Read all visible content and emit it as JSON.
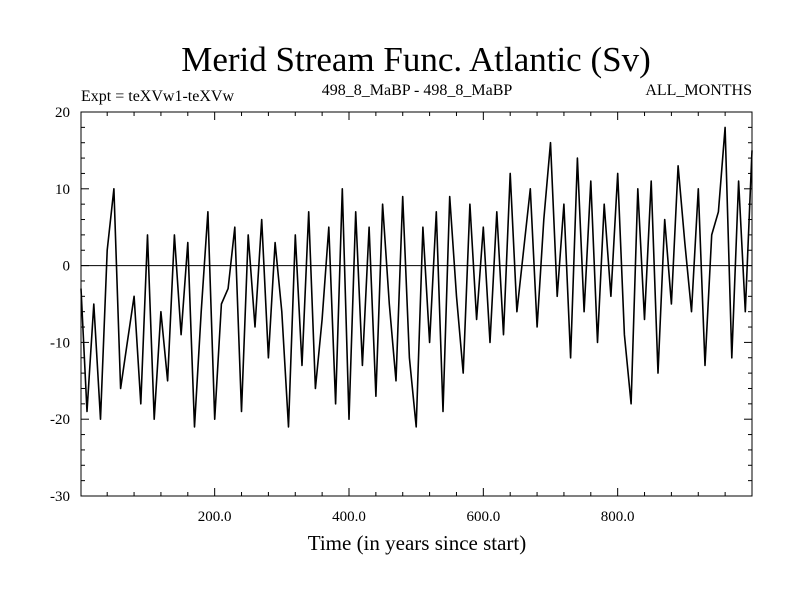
{
  "chart_data": {
    "type": "line",
    "title": "Merid Stream Func. Atlantic (Sv)",
    "subtitle_left": "Expt = teXVw1-teXVw",
    "subtitle_center": "498_8_MaBP - 498_8_MaBP",
    "subtitle_right": "ALL_MONTHS",
    "xlabel": "Time (in years since start)",
    "ylabel": "",
    "xlim": [
      1,
      1000
    ],
    "ylim": [
      -30,
      20
    ],
    "x_ticks": [
      200,
      400,
      600,
      800
    ],
    "x_tick_labels": [
      "200.0",
      "400.0",
      "600.0",
      "800.0"
    ],
    "y_ticks": [
      -30,
      -20,
      -10,
      0,
      10,
      20
    ],
    "y_tick_labels": [
      "-30",
      "-20",
      "-10",
      "0",
      "10",
      "20"
    ],
    "zero_line": true,
    "grid": false,
    "series": [
      {
        "x": [
          1,
          10,
          20,
          30,
          40,
          50,
          60,
          70,
          80,
          90,
          100,
          110,
          120,
          130,
          140,
          150,
          160,
          170,
          180,
          190,
          200,
          210,
          220,
          230,
          240,
          250,
          260,
          270,
          280,
          290,
          300,
          310,
          320,
          330,
          340,
          350,
          360,
          370,
          380,
          390,
          400,
          410,
          420,
          430,
          440,
          450,
          460,
          470,
          480,
          490,
          500,
          510,
          520,
          530,
          540,
          550,
          560,
          570,
          580,
          590,
          600,
          610,
          620,
          630,
          640,
          650,
          660,
          670,
          680,
          690,
          700,
          710,
          720,
          730,
          740,
          750,
          760,
          770,
          780,
          790,
          800,
          810,
          820,
          830,
          840,
          850,
          860,
          870,
          880,
          890,
          900,
          910,
          920,
          930,
          940,
          950,
          960,
          970,
          980,
          990,
          1000
        ],
        "values": [
          -3,
          -19,
          -5,
          -20,
          2,
          10,
          -16,
          -10,
          -4,
          -18,
          4,
          -20,
          -6,
          -15,
          4,
          -9,
          3,
          -21,
          -6,
          7,
          -20,
          -5,
          -3,
          5,
          -19,
          4,
          -8,
          6,
          -12,
          3,
          -6,
          -21,
          4,
          -13,
          7,
          -16,
          -7,
          5,
          -18,
          10,
          -20,
          7,
          -13,
          5,
          -17,
          8,
          -5,
          -15,
          9,
          -12,
          -21,
          5,
          -10,
          7,
          -19,
          9,
          -4,
          -14,
          8,
          -7,
          5,
          -10,
          7,
          -9,
          12,
          -6,
          2,
          10,
          -8,
          6,
          16,
          -4,
          8,
          -12,
          14,
          -6,
          11,
          -10,
          8,
          -4,
          12,
          -9,
          -18,
          10,
          -7,
          11,
          -14,
          6,
          -5,
          13,
          3,
          -6,
          10,
          -13,
          4,
          7,
          18,
          -12,
          11,
          -6,
          15
        ]
      }
    ]
  }
}
